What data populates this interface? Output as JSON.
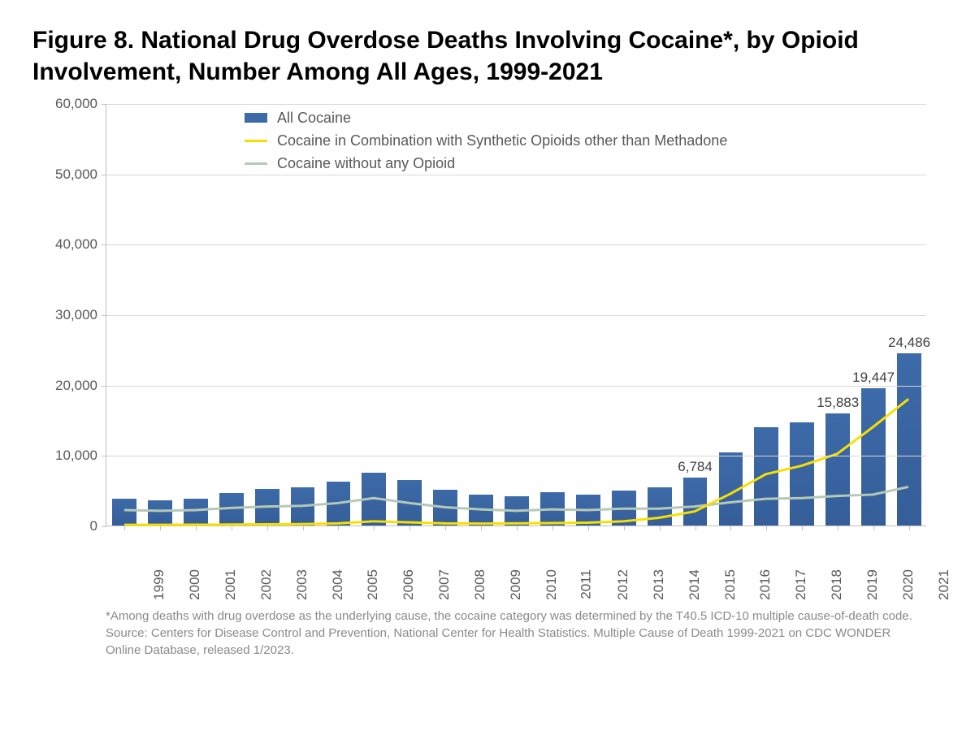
{
  "title": "Figure 8. National Drug Overdose Deaths Involving Cocaine*, by Opioid Involvement, Number Among All Ages, 1999-2021",
  "footnote": "*Among deaths with drug overdose as the underlying cause, the cocaine category was determined by the T40.5 ICD-10 multiple cause-of-death code. Source: Centers for Disease Control and Prevention, National Center for Health Statistics. Multiple Cause of Death 1999-2021 on CDC WONDER Online Database, released 1/2023.",
  "chart": {
    "type": "bar-with-lines",
    "background_color": "#ffffff",
    "grid_color": "#d9d9d9",
    "axis_color": "#bfbfbf",
    "tick_label_color": "#595959",
    "tick_fontsize": 17,
    "ylim": [
      0,
      60000
    ],
    "yticks": [
      0,
      10000,
      20000,
      30000,
      40000,
      50000,
      60000
    ],
    "ytick_labels": [
      "0",
      "10,000",
      "20,000",
      "30,000",
      "40,000",
      "50,000",
      "60,000"
    ],
    "years": [
      "1999",
      "2000",
      "2001",
      "2002",
      "2003",
      "2004",
      "2005",
      "2006",
      "2007",
      "2008",
      "2009",
      "2010",
      "2011",
      "2012",
      "2013",
      "2014",
      "2015",
      "2016",
      "2017",
      "2018",
      "2019",
      "2020",
      "2021"
    ],
    "bar_color": "#3d6aa8",
    "bar_width_ratio": 0.68,
    "series": {
      "all_cocaine": {
        "label": "All Cocaine",
        "type": "bar",
        "color": "#3d6aa8",
        "values": [
          3822,
          3544,
          3833,
          4599,
          5199,
          5443,
          6208,
          7448,
          6512,
          5129,
          4350,
          4183,
          4681,
          4404,
          4944,
          5415,
          6784,
          10375,
          13942,
          14666,
          15883,
          19447,
          24486
        ]
      },
      "with_synthetic": {
        "label": "Cocaine in Combination with Synthetic Opioids other than Methadone",
        "type": "line",
        "color": "#f7e000",
        "line_width": 3,
        "values": [
          100,
          100,
          110,
          150,
          180,
          200,
          300,
          600,
          450,
          300,
          280,
          300,
          350,
          400,
          600,
          1100,
          2000,
          4500,
          7300,
          8500,
          10200,
          14000,
          18000
        ]
      },
      "without_opioid": {
        "label": "Cocaine without any Opioid",
        "type": "line",
        "color": "#b5c9b6",
        "line_width": 3,
        "values": [
          2200,
          2100,
          2200,
          2500,
          2700,
          2800,
          3200,
          3900,
          3200,
          2600,
          2300,
          2100,
          2300,
          2200,
          2400,
          2400,
          2700,
          3300,
          3800,
          3900,
          4200,
          4400,
          5500
        ]
      }
    },
    "data_labels": [
      {
        "year_index": 16,
        "text": "6,784"
      },
      {
        "year_index": 20,
        "text": "15,883"
      },
      {
        "year_index": 21,
        "text": "19,447"
      },
      {
        "year_index": 22,
        "text": "24,486"
      }
    ],
    "legend": {
      "position": "top-left-inside",
      "fontsize": 18,
      "text_color": "#595959"
    }
  }
}
